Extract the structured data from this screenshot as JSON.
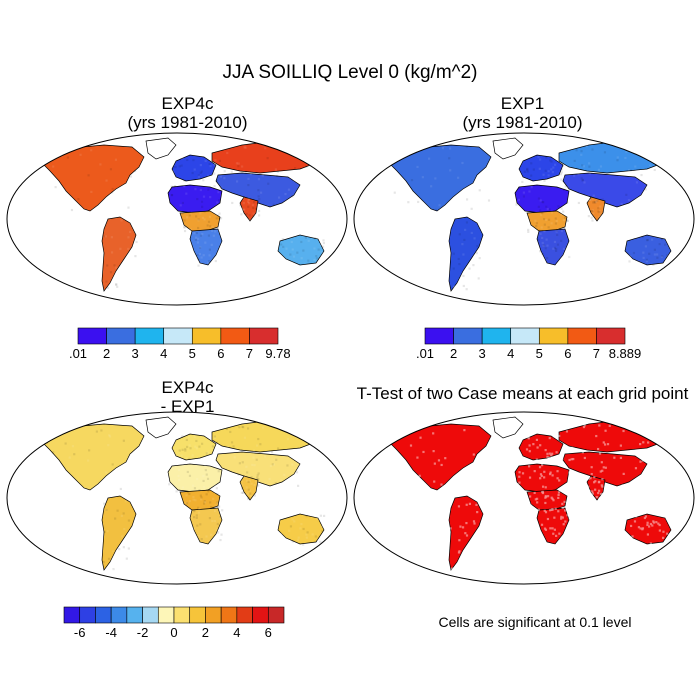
{
  "title": "JJA SOILLIQ Level 0 (kg/m^2)",
  "panels": [
    {
      "id": "exp4c",
      "title_line1": "EXP4c",
      "title_line2": "(yrs 1981-2010)",
      "colorbar": {
        "colors": [
          "#3b10f0",
          "#3a6ee0",
          "#1fb4ee",
          "#c6e8f8",
          "#f7be2a",
          "#f25a14",
          "#d82e2e"
        ],
        "labels": [
          ".01",
          "2",
          "3",
          "4",
          "5",
          "6",
          "7",
          "9.78"
        ]
      },
      "regions": {
        "north_america": "#ec5a1c",
        "south_america": "#e8622a",
        "europe": "#2c45e8",
        "sahara": "#3a1cf0",
        "central_africa": "#f0a030",
        "southern_africa": "#4a80e8",
        "siberia": "#e8401c",
        "asia": "#3c5ae0",
        "india": "#e84a20",
        "australia": "#57b0ee",
        "greenland": "#ffffff"
      }
    },
    {
      "id": "exp1",
      "title_line1": "EXP1",
      "title_line2": "(yrs 1981-2010)",
      "colorbar": {
        "colors": [
          "#3b10f0",
          "#3a6ee0",
          "#1fb4ee",
          "#c6e8f8",
          "#f7be2a",
          "#f25a14",
          "#d82e2e"
        ],
        "labels": [
          ".01",
          "2",
          "3",
          "4",
          "5",
          "6",
          "7",
          "8.889"
        ]
      },
      "regions": {
        "north_america": "#3a6ee0",
        "south_america": "#2c50e0",
        "europe": "#2c45e8",
        "sahara": "#3a1cf0",
        "central_africa": "#f0a030",
        "southern_africa": "#3a50e0",
        "siberia": "#3c90ea",
        "asia": "#3a4ae8",
        "india": "#f08a2c",
        "australia": "#3a5fe0",
        "greenland": "#ffffff"
      }
    },
    {
      "id": "diff",
      "title_line1": "EXP4c",
      "title_line2": "- EXP1",
      "colorbar": {
        "colors": [
          "#3218e6",
          "#2e40e4",
          "#2c62e4",
          "#3c8ae8",
          "#56b2ee",
          "#a6d8f2",
          "#fdf6b8",
          "#fbe070",
          "#f6c43a",
          "#f2a024",
          "#ef7616",
          "#e23c16",
          "#e21414",
          "#c82828"
        ],
        "labels": [
          "-6",
          "-4",
          "-2",
          "0",
          "2",
          "4",
          "6"
        ]
      },
      "regions": {
        "north_america": "#f6d860",
        "south_america": "#f2c040",
        "europe": "#f7e06a",
        "sahara": "#fbf0a8",
        "central_africa": "#f2b030",
        "southern_africa": "#f4c850",
        "siberia": "#f6d85a",
        "asia": "#f9e078",
        "india": "#f4c244",
        "australia": "#f6cc48",
        "greenland": "#ffffff"
      }
    },
    {
      "id": "ttest",
      "title_line1": "T-Test of two Case means at each grid point",
      "title_line2": "",
      "note": "Cells are significant at 0.1 level",
      "regions": {
        "north_america": "#ee0a0a",
        "south_america": "#ee0a0a",
        "europe": "#ee0a0a",
        "sahara": "#ee0a0a",
        "central_africa": "#ee0a0a",
        "southern_africa": "#ee0a0a",
        "siberia": "#ee0a0a",
        "asia": "#ee0a0a",
        "india": "#ee0a0a",
        "australia": "#ee0a0a",
        "greenland": "#ffffff"
      }
    }
  ]
}
